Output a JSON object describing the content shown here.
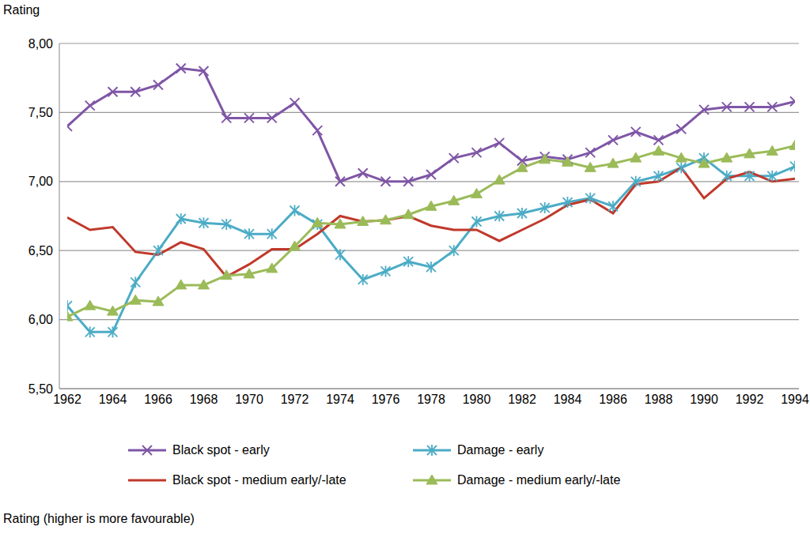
{
  "chart_data": {
    "type": "line",
    "y_label": "Rating",
    "caption": "Rating (higher is more favourable)",
    "x": [
      1962,
      1963,
      1964,
      1965,
      1966,
      1967,
      1968,
      1969,
      1970,
      1971,
      1972,
      1973,
      1974,
      1975,
      1976,
      1977,
      1978,
      1979,
      1980,
      1981,
      1982,
      1983,
      1984,
      1985,
      1986,
      1987,
      1988,
      1989,
      1990,
      1991,
      1992,
      1993,
      1994
    ],
    "xlim": [
      1962,
      1994
    ],
    "xticks": [
      1962,
      1964,
      1966,
      1968,
      1970,
      1972,
      1974,
      1976,
      1978,
      1980,
      1982,
      1984,
      1986,
      1988,
      1990,
      1992,
      1994
    ],
    "ylim": [
      5.5,
      8.0
    ],
    "yticks": [
      {
        "value": 5.5,
        "label": "5,50"
      },
      {
        "value": 6.0,
        "label": "6,00"
      },
      {
        "value": 6.5,
        "label": "6,50"
      },
      {
        "value": 7.0,
        "label": "7,00"
      },
      {
        "value": 7.5,
        "label": "7,50"
      },
      {
        "value": 8.0,
        "label": "8,00"
      }
    ],
    "grid": true,
    "legend": "bottom",
    "series": [
      {
        "name": "Black spot - early",
        "color": "#7f56a6",
        "marker": "x",
        "values": [
          7.4,
          7.55,
          7.65,
          7.65,
          7.7,
          7.82,
          7.8,
          7.46,
          7.46,
          7.46,
          7.57,
          7.37,
          7.0,
          7.06,
          7.0,
          7.0,
          7.05,
          7.17,
          7.21,
          7.28,
          7.15,
          7.18,
          7.16,
          7.21,
          7.3,
          7.36,
          7.3,
          7.38,
          7.52,
          7.54,
          7.54,
          7.54,
          7.58
        ]
      },
      {
        "name": "Damage - early",
        "color": "#4bacc6",
        "marker": "star",
        "values": [
          6.1,
          5.91,
          5.91,
          6.27,
          6.5,
          6.73,
          6.7,
          6.69,
          6.62,
          6.62,
          6.79,
          6.69,
          6.47,
          6.29,
          6.35,
          6.42,
          6.38,
          6.5,
          6.71,
          6.75,
          6.77,
          6.81,
          6.85,
          6.88,
          6.82,
          7.0,
          7.04,
          7.1,
          7.17,
          7.04,
          7.04,
          7.04,
          7.11
        ]
      },
      {
        "name": "Black spot - medium early/-late",
        "color": "#c0392b",
        "marker": "none",
        "values": [
          6.74,
          6.65,
          6.67,
          6.49,
          6.47,
          6.56,
          6.51,
          6.31,
          6.4,
          6.51,
          6.51,
          6.62,
          6.75,
          6.71,
          6.72,
          6.75,
          6.68,
          6.65,
          6.65,
          6.57,
          6.65,
          6.73,
          6.83,
          6.87,
          6.77,
          6.98,
          7.0,
          7.1,
          6.88,
          7.02,
          7.07,
          7.0,
          7.02
        ]
      },
      {
        "name": "Damage - medium early/-late",
        "color": "#9bbb59",
        "marker": "triangle",
        "values": [
          6.02,
          6.1,
          6.06,
          6.14,
          6.13,
          6.25,
          6.25,
          6.32,
          6.33,
          6.37,
          6.53,
          6.7,
          6.69,
          6.71,
          6.72,
          6.76,
          6.82,
          6.86,
          6.91,
          7.01,
          7.1,
          7.16,
          7.14,
          7.1,
          7.13,
          7.17,
          7.22,
          7.17,
          7.13,
          7.17,
          7.2,
          7.22,
          7.26
        ]
      }
    ]
  }
}
